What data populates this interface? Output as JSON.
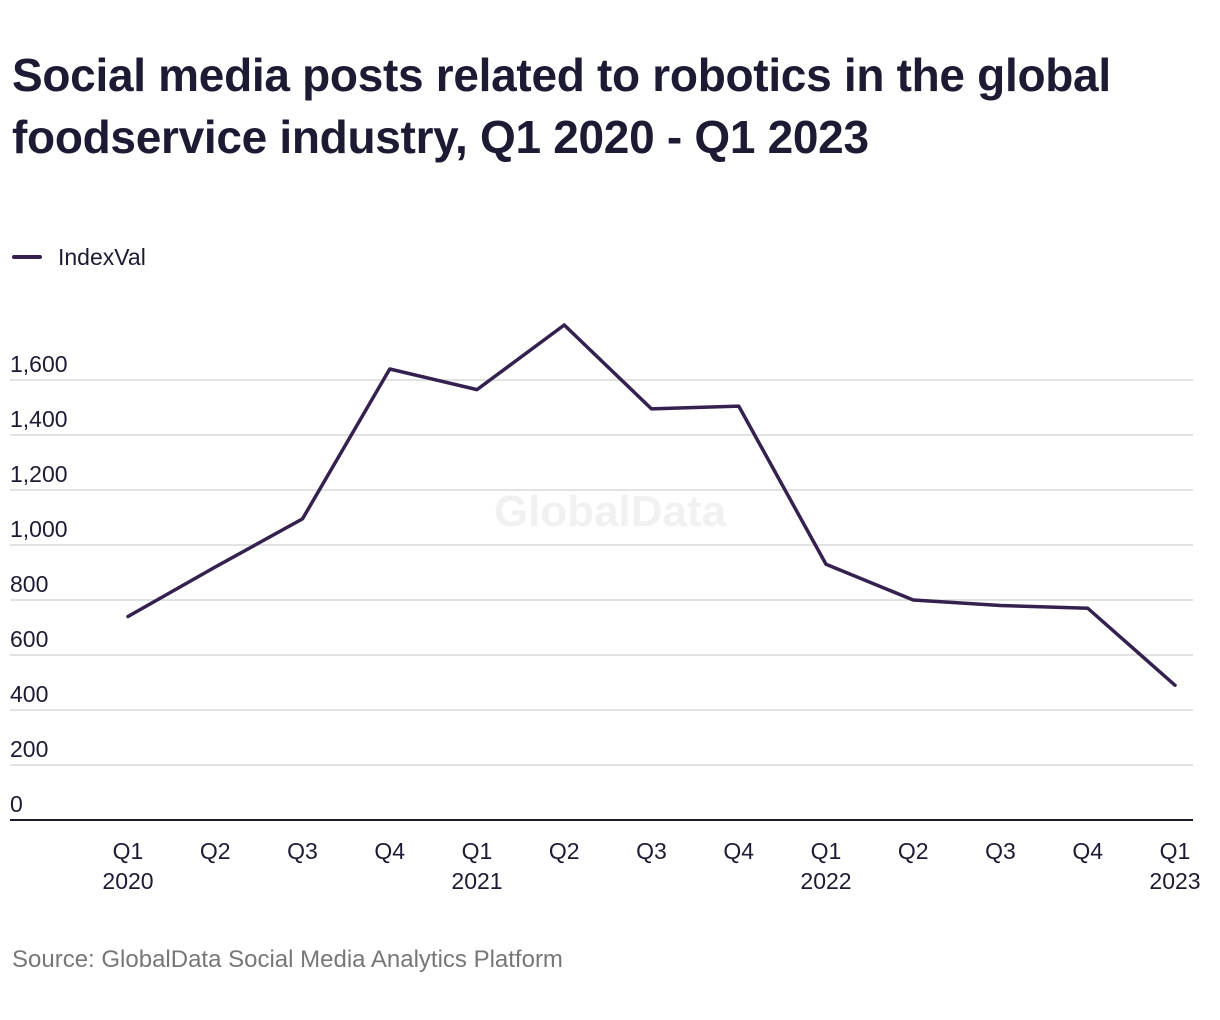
{
  "chart_data": {
    "type": "line",
    "title": "Social media posts related to robotics in the global foodservice industry, Q1 2020 - Q1 2023",
    "xlabel": "",
    "ylabel": "",
    "categories": [
      [
        "Q1",
        "2020"
      ],
      [
        "Q2",
        ""
      ],
      [
        "Q3",
        ""
      ],
      [
        "Q4",
        ""
      ],
      [
        "Q1",
        "2021"
      ],
      [
        "Q2",
        ""
      ],
      [
        "Q3",
        ""
      ],
      [
        "Q4",
        ""
      ],
      [
        "Q1",
        "2022"
      ],
      [
        "Q2",
        ""
      ],
      [
        "Q3",
        ""
      ],
      [
        "Q4",
        ""
      ],
      [
        "Q1",
        "2023"
      ]
    ],
    "series": [
      {
        "name": "IndexVal",
        "color": "#35214f",
        "values": [
          740,
          920,
          1095,
          1640,
          1565,
          1800,
          1495,
          1505,
          930,
          800,
          780,
          770,
          490
        ]
      }
    ],
    "yticks": [
      0,
      200,
      400,
      600,
      800,
      1000,
      1200,
      1400,
      1600
    ],
    "ytick_labels": [
      "0",
      "200",
      "400",
      "600",
      "800",
      "1,000",
      "1,200",
      "1,400",
      "1,600"
    ],
    "ylim": [
      0,
      1600
    ],
    "grid": true,
    "legend_position": "top-left",
    "watermark": "GlobalData",
    "source": "Source: GlobalData Social Media Analytics Platform",
    "colors": {
      "line": "#35214f",
      "grid": "#d8d8d8",
      "axis": "#1c1b33",
      "text": "#1c1b33",
      "source_text": "#777777"
    }
  }
}
